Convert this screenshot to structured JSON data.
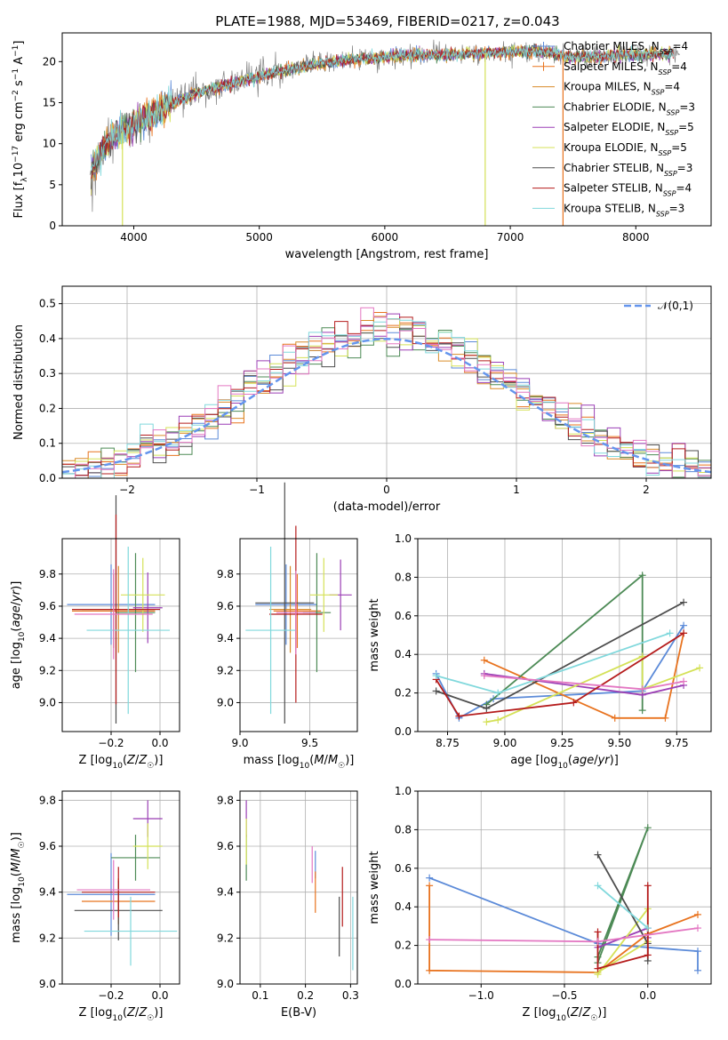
{
  "title": "PLATE=1988, MJD=53469, FIBERID=0217, z=0.043",
  "colors": {
    "Chabrier MILES": "#5b8ad8",
    "Salpeter MILES": "#e8731f",
    "Kroupa MILES": "#d98c2a",
    "Chabrier ELODIE": "#4c8a55",
    "Salpeter ELODIE": "#9b3fb5",
    "Kroupa ELODIE": "#d4e157",
    "Chabrier STELIB": "#4d4d4d",
    "Salpeter STELIB": "#b51c1c",
    "Kroupa STELIB": "#80d8dc",
    "Salpeter MILES pink": "#e377c2",
    "gauss": "#6495ed",
    "spectrum": "#808080"
  },
  "chart_data": [
    {
      "id": "spectrum",
      "type": "line",
      "xlabel": "wavelength [Angstrom, rest frame]",
      "ylabel": "Flux [f_λ 10^-17 erg cm^-2 s^-1 A^-1]",
      "xlim": [
        3430,
        8600
      ],
      "ylim": [
        0,
        23.5
      ],
      "xticks": [
        "4000",
        "5000",
        "6000",
        "7000",
        "8000"
      ],
      "yticks": [
        "0",
        "5",
        "10",
        "15",
        "20"
      ],
      "legend_position": "right",
      "legend": [
        {
          "label": "Chabrier MILES, N",
          "sub": "SSP",
          "eq": "=4",
          "color": "#5b8ad8",
          "marker": true
        },
        {
          "label": "Salpeter MILES, N",
          "sub": "SSP",
          "eq": "=4",
          "color": "#e8731f",
          "marker": true
        },
        {
          "label": "Kroupa MILES, N",
          "sub": "SSP",
          "eq": "=4",
          "color": "#d98c2a",
          "marker": false
        },
        {
          "label": "Chabrier ELODIE, N",
          "sub": "SSP",
          "eq": "=3",
          "color": "#4c8a55",
          "marker": false
        },
        {
          "label": "Salpeter ELODIE, N",
          "sub": "SSP",
          "eq": "=5",
          "color": "#9b3fb5",
          "marker": false
        },
        {
          "label": "Kroupa ELODIE, N",
          "sub": "SSP",
          "eq": "=5",
          "color": "#d4e157",
          "marker": false
        },
        {
          "label": "Chabrier STELIB, N",
          "sub": "SSP",
          "eq": "=3",
          "color": "#4d4d4d",
          "marker": false
        },
        {
          "label": "Salpeter STELIB, N",
          "sub": "SSP",
          "eq": "=4",
          "color": "#b51c1c",
          "marker": false
        },
        {
          "label": "Kroupa STELIB, N",
          "sub": "SSP",
          "eq": "=3",
          "color": "#80d8dc",
          "marker": false
        }
      ],
      "continuum": {
        "x": [
          3650,
          3800,
          3950,
          4100,
          4300,
          4500,
          4700,
          4900,
          5100,
          5300,
          5500,
          5700,
          5900,
          6100,
          6300,
          6500,
          6700,
          6900,
          7100,
          7300,
          7500,
          7700,
          7900,
          8100,
          8300
        ],
        "y": [
          6.5,
          10.5,
          11.8,
          13.2,
          14.8,
          16.2,
          17.0,
          17.8,
          18.6,
          19.2,
          19.8,
          20.2,
          20.4,
          20.7,
          20.8,
          20.9,
          21.0,
          21.1,
          21.2,
          21.1,
          20.5,
          20.6,
          20.8,
          20.9,
          21.0
        ]
      },
      "drop_lines": [
        {
          "x": 6800,
          "color": "#d4e157"
        },
        {
          "x": 7420,
          "color": "#e8731f"
        },
        {
          "x": 3910,
          "color": "#d4e157"
        }
      ]
    },
    {
      "id": "residuals",
      "type": "histogram",
      "xlabel": "(data-model)/error",
      "ylabel": "Normed distribution",
      "xlim": [
        -2.5,
        2.5
      ],
      "ylim": [
        0,
        0.55
      ],
      "xticks": [
        "−2",
        "−1",
        "0",
        "1",
        "2"
      ],
      "yticks": [
        "0.0",
        "0.1",
        "0.2",
        "0.3",
        "0.4",
        "0.5"
      ],
      "bin_width": 0.1,
      "legend": "𝒩(0,1)",
      "legend_position": "top-right",
      "series_colors": [
        "#5b8ad8",
        "#e8731f",
        "#d98c2a",
        "#4c8a55",
        "#9b3fb5",
        "#d4e157",
        "#4d4d4d",
        "#b51c1c",
        "#80d8dc",
        "#e377c2"
      ]
    },
    {
      "id": "age-vs-Z",
      "type": "errorbar",
      "xlabel": "Z [log10(Z/Z☉)]",
      "ylabel": "age  [log10(age/yr)]",
      "xlim": [
        -0.4,
        0.08
      ],
      "ylim": [
        8.82,
        10.02
      ],
      "xticks": [
        "−0.2",
        "0.0"
      ],
      "yticks": [
        "9.0",
        "9.2",
        "9.4",
        "9.6",
        "9.8"
      ],
      "points": [
        {
          "x": -0.2,
          "y": 9.61,
          "xerr": 0.18,
          "yerr": 0.25,
          "color": "#5b8ad8"
        },
        {
          "x": -0.17,
          "y": 9.58,
          "xerr": 0.15,
          "yerr": 0.27,
          "color": "#d98c2a"
        },
        {
          "x": -0.19,
          "y": 9.57,
          "xerr": 0.17,
          "yerr": 0.23,
          "color": "#e8731f"
        },
        {
          "x": -0.1,
          "y": 9.56,
          "xerr": 0.08,
          "yerr": 0.37,
          "color": "#4c8a55"
        },
        {
          "x": -0.05,
          "y": 9.59,
          "xerr": 0.06,
          "yerr": 0.22,
          "color": "#9b3fb5"
        },
        {
          "x": -0.07,
          "y": 9.67,
          "xerr": 0.09,
          "yerr": 0.23,
          "color": "#d4e157"
        },
        {
          "x": -0.18,
          "y": 9.58,
          "xerr": 0.18,
          "yerr": 0.71,
          "color": "#4d4d4d"
        },
        {
          "x": -0.18,
          "y": 9.58,
          "xerr": 0.18,
          "yerr": 0.59,
          "color": "#b51c1c"
        },
        {
          "x": -0.13,
          "y": 9.45,
          "xerr": 0.17,
          "yerr": 0.52,
          "color": "#80d8dc"
        },
        {
          "x": -0.19,
          "y": 9.55,
          "xerr": 0.16,
          "yerr": 0.28,
          "color": "#e377c2"
        }
      ]
    },
    {
      "id": "age-vs-mass",
      "type": "errorbar",
      "xlabel": "mass [log10(M/M☉)]",
      "ylabel": "",
      "xlim": [
        9.0,
        9.84
      ],
      "ylim": [
        8.82,
        10.02
      ],
      "xticks": [
        "9.0",
        "9.5"
      ],
      "yticks": [
        "9.0",
        "9.2",
        "9.4",
        "9.6",
        "9.8"
      ],
      "points": [
        {
          "x": 9.33,
          "y": 9.61,
          "xerr": 0.22,
          "yerr": 0.25,
          "color": "#5b8ad8"
        },
        {
          "x": 9.36,
          "y": 9.58,
          "xerr": 0.15,
          "yerr": 0.27,
          "color": "#d98c2a"
        },
        {
          "x": 9.41,
          "y": 9.57,
          "xerr": 0.17,
          "yerr": 0.23,
          "color": "#e8731f"
        },
        {
          "x": 9.55,
          "y": 9.56,
          "xerr": 0.1,
          "yerr": 0.37,
          "color": "#4c8a55"
        },
        {
          "x": 9.72,
          "y": 9.67,
          "xerr": 0.08,
          "yerr": 0.22,
          "color": "#9b3fb5"
        },
        {
          "x": 9.6,
          "y": 9.67,
          "xerr": 0.1,
          "yerr": 0.23,
          "color": "#d4e157"
        },
        {
          "x": 9.32,
          "y": 9.62,
          "xerr": 0.21,
          "yerr": 0.75,
          "color": "#4d4d4d"
        },
        {
          "x": 9.4,
          "y": 9.55,
          "xerr": 0.19,
          "yerr": 0.55,
          "color": "#b51c1c"
        },
        {
          "x": 9.22,
          "y": 9.45,
          "xerr": 0.18,
          "yerr": 0.52,
          "color": "#80d8dc"
        },
        {
          "x": 9.4,
          "y": 9.56,
          "xerr": 0.14,
          "yerr": 0.26,
          "color": "#e377c2"
        }
      ]
    },
    {
      "id": "mass-weight-vs-age",
      "type": "line",
      "xlabel": "age  [log10(age/yr)]",
      "ylabel": "mass weight",
      "xlim": [
        8.62,
        9.9
      ],
      "ylim": [
        0,
        1.0
      ],
      "xticks": [
        "8.75",
        "9.00",
        "9.25",
        "9.50",
        "9.75"
      ],
      "yticks": [
        "0.0",
        "0.2",
        "0.4",
        "0.6",
        "0.8",
        "1.0"
      ],
      "series": [
        {
          "color": "#5b8ad8",
          "x": [
            8.7,
            8.8,
            8.95,
            9.6,
            9.78
          ],
          "y": [
            0.3,
            0.07,
            0.17,
            0.21,
            0.55
          ]
        },
        {
          "color": "#e8731f",
          "x": [
            8.91,
            9.48,
            9.7,
            9.78
          ],
          "y": [
            0.37,
            0.07,
            0.07,
            0.51
          ]
        },
        {
          "color": "#4c8a55",
          "x": [
            8.92,
            9.6,
            9.6
          ],
          "y": [
            0.14,
            0.81,
            0.11
          ]
        },
        {
          "color": "#9b3fb5",
          "x": [
            8.91,
            9.6,
            9.78
          ],
          "y": [
            0.3,
            0.19,
            0.24
          ]
        },
        {
          "color": "#d4e157",
          "x": [
            8.92,
            8.97,
            9.6,
            9.6,
            9.85
          ],
          "y": [
            0.05,
            0.06,
            0.39,
            0.22,
            0.33
          ]
        },
        {
          "color": "#4d4d4d",
          "x": [
            8.7,
            8.92,
            9.78
          ],
          "y": [
            0.21,
            0.12,
            0.67
          ]
        },
        {
          "color": "#b51c1c",
          "x": [
            8.7,
            8.8,
            9.3,
            9.78
          ],
          "y": [
            0.27,
            0.08,
            0.15,
            0.51
          ]
        },
        {
          "color": "#80d8dc",
          "x": [
            8.7,
            8.97,
            9.72
          ],
          "y": [
            0.29,
            0.2,
            0.51
          ]
        },
        {
          "color": "#e377c2",
          "x": [
            8.91,
            9.6,
            9.78
          ],
          "y": [
            0.29,
            0.22,
            0.26
          ]
        }
      ]
    },
    {
      "id": "mass-vs-Z",
      "type": "errorbar",
      "xlabel": "Z [log10(Z/Z☉)]",
      "ylabel": "mass [log10(M/M☉)]",
      "xlim": [
        -0.4,
        0.08
      ],
      "ylim": [
        9.0,
        9.84
      ],
      "xticks": [
        "−0.2",
        "0.0"
      ],
      "yticks": [
        "9.0",
        "9.2",
        "9.4",
        "9.6",
        "9.8"
      ],
      "points": [
        {
          "x": -0.2,
          "y": 9.39,
          "xerr": 0.18,
          "yerr": 0.18,
          "color": "#5b8ad8"
        },
        {
          "x": -0.17,
          "y": 9.36,
          "xerr": 0.15,
          "yerr": 0.1,
          "color": "#e8731f"
        },
        {
          "x": -0.1,
          "y": 9.55,
          "xerr": 0.1,
          "yerr": 0.1,
          "color": "#4c8a55"
        },
        {
          "x": -0.05,
          "y": 9.72,
          "xerr": 0.06,
          "yerr": 0.08,
          "color": "#9b3fb5"
        },
        {
          "x": -0.05,
          "y": 9.6,
          "xerr": 0.06,
          "yerr": 0.1,
          "color": "#d4e157"
        },
        {
          "x": -0.17,
          "y": 9.32,
          "xerr": 0.18,
          "yerr": 0.13,
          "color": "#4d4d4d"
        },
        {
          "x": -0.17,
          "y": 9.4,
          "xerr": 0.15,
          "yerr": 0.11,
          "color": "#b51c1c"
        },
        {
          "x": -0.12,
          "y": 9.23,
          "xerr": 0.19,
          "yerr": 0.15,
          "color": "#80d8dc"
        },
        {
          "x": -0.19,
          "y": 9.41,
          "xerr": 0.15,
          "yerr": 0.13,
          "color": "#e377c2"
        }
      ]
    },
    {
      "id": "mass-vs-ebv",
      "type": "errorbar",
      "xlabel": "E(B-V)",
      "ylabel": "",
      "xlim": [
        0.055,
        0.315
      ],
      "ylim": [
        9.0,
        9.84
      ],
      "xticks": [
        "0.1",
        "0.2",
        "0.3"
      ],
      "yticks": [
        "9.0",
        "9.2",
        "9.4",
        "9.6",
        "9.8"
      ],
      "points": [
        {
          "x": 0.222,
          "y": 9.52,
          "xerr": 0.0,
          "yerr": 0.06,
          "color": "#5b8ad8"
        },
        {
          "x": 0.222,
          "y": 9.4,
          "xerr": 0.0,
          "yerr": 0.09,
          "color": "#e8731f"
        },
        {
          "x": 0.069,
          "y": 9.55,
          "xerr": 0.0,
          "yerr": 0.1,
          "color": "#4c8a55"
        },
        {
          "x": 0.069,
          "y": 9.72,
          "xerr": 0.0,
          "yerr": 0.08,
          "color": "#9b3fb5"
        },
        {
          "x": 0.069,
          "y": 9.62,
          "xerr": 0.0,
          "yerr": 0.1,
          "color": "#d4e157"
        },
        {
          "x": 0.275,
          "y": 9.25,
          "xerr": 0.0,
          "yerr": 0.13,
          "color": "#4d4d4d"
        },
        {
          "x": 0.282,
          "y": 9.38,
          "xerr": 0.0,
          "yerr": 0.13,
          "color": "#b51c1c"
        },
        {
          "x": 0.305,
          "y": 9.22,
          "xerr": 0.0,
          "yerr": 0.16,
          "color": "#80d8dc"
        },
        {
          "x": 0.215,
          "y": 9.52,
          "xerr": 0.0,
          "yerr": 0.08,
          "color": "#e377c2"
        }
      ]
    },
    {
      "id": "mass-weight-vs-Z",
      "type": "line",
      "xlabel": "Z [log10(Z/Z☉)]",
      "ylabel": "mass weight",
      "xlim": [
        -1.38,
        0.38
      ],
      "ylim": [
        0,
        1.0
      ],
      "xticks": [
        "−1.0",
        "−0.5",
        "0.0"
      ],
      "yticks": [
        "0.0",
        "0.2",
        "0.4",
        "0.6",
        "0.8",
        "1.0"
      ],
      "series": [
        {
          "color": "#5b8ad8",
          "x": [
            -1.31,
            -0.3,
            0.0,
            0.3,
            0.3
          ],
          "y": [
            0.55,
            0.21,
            0.19,
            0.17,
            0.07
          ]
        },
        {
          "color": "#e8731f",
          "x": [
            -1.31,
            -1.31,
            -0.3,
            0.0,
            0.3
          ],
          "y": [
            0.51,
            0.07,
            0.06,
            0.26,
            0.36
          ]
        },
        {
          "color": "#4c8a55",
          "x": [
            -0.3,
            0.0,
            -0.3
          ],
          "y": [
            0.11,
            0.81,
            0.14
          ]
        },
        {
          "color": "#9b3fb5",
          "x": [
            -0.3,
            0.0,
            0.0
          ],
          "y": [
            0.19,
            0.29,
            0.24
          ]
        },
        {
          "color": "#d4e157",
          "x": [
            -0.3,
            0.0,
            0.0,
            -0.3
          ],
          "y": [
            0.05,
            0.39,
            0.22,
            0.06
          ]
        },
        {
          "color": "#4d4d4d",
          "x": [
            -0.3,
            0.0,
            0.0
          ],
          "y": [
            0.67,
            0.21,
            0.12
          ]
        },
        {
          "color": "#b51c1c",
          "x": [
            -0.3,
            -0.3,
            0.0,
            0.0
          ],
          "y": [
            0.27,
            0.08,
            0.15,
            0.51
          ]
        },
        {
          "color": "#80d8dc",
          "x": [
            -0.3,
            0.0
          ],
          "y": [
            0.51,
            0.29
          ]
        },
        {
          "color": "#e377c2",
          "x": [
            -1.31,
            -0.3,
            0.3
          ],
          "y": [
            0.23,
            0.22,
            0.29
          ]
        }
      ]
    }
  ]
}
